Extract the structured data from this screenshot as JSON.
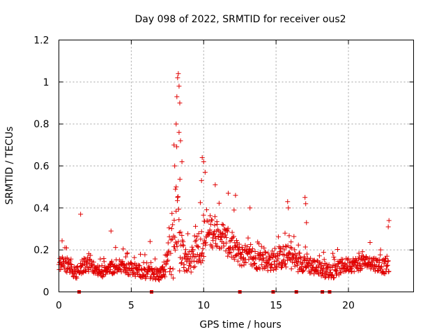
{
  "chart_data": {
    "type": "scatter",
    "title": "Day 098 of 2022, SRMTID for receiver ous2",
    "xlabel": "GPS time / hours",
    "ylabel": "SRMTID / TECUs",
    "xlim": [
      0,
      24.5
    ],
    "ylim": [
      0,
      1.2
    ],
    "xticks": [
      0,
      5,
      10,
      15,
      20
    ],
    "xtick_labels": [
      "0",
      "5",
      "10",
      "15",
      "20"
    ],
    "yticks": [
      0,
      0.2,
      0.4,
      0.6,
      0.8,
      1.0,
      1.2
    ],
    "ytick_labels": [
      "0",
      "0.2",
      "0.4",
      "0.6",
      "0.8",
      "1",
      "1.2"
    ],
    "grid": true,
    "marker": "+",
    "marker_color": "#e00000",
    "series": [
      {
        "name": "SRMTID ous2",
        "envelope": {
          "x": [
            0,
            0.5,
            1,
            1.4,
            1.6,
            2,
            2.5,
            3,
            3.5,
            4,
            4.5,
            5,
            5.5,
            6,
            6.5,
            7,
            7.5,
            7.8,
            8.0,
            8.2,
            8.4,
            8.6,
            9,
            9.5,
            10,
            10.4,
            10.8,
            11.2,
            11.6,
            12,
            12.5,
            13,
            13.5,
            14,
            14.5,
            15,
            15.5,
            16,
            16.5,
            17,
            17.5,
            18,
            18.5,
            19,
            19.5,
            20,
            20.5,
            21,
            21.5,
            22,
            22.5,
            22.8
          ],
          "base": [
            0.13,
            0.12,
            0.09,
            0.08,
            0.12,
            0.12,
            0.1,
            0.09,
            0.1,
            0.11,
            0.11,
            0.1,
            0.09,
            0.08,
            0.08,
            0.07,
            0.12,
            0.18,
            0.22,
            0.2,
            0.18,
            0.15,
            0.12,
            0.16,
            0.22,
            0.26,
            0.27,
            0.25,
            0.22,
            0.19,
            0.16,
            0.15,
            0.14,
            0.14,
            0.13,
            0.14,
            0.15,
            0.15,
            0.13,
            0.13,
            0.11,
            0.1,
            0.09,
            0.09,
            0.11,
            0.12,
            0.12,
            0.13,
            0.13,
            0.12,
            0.11,
            0.12
          ],
          "spread": [
            0.05,
            0.05,
            0.04,
            0.04,
            0.06,
            0.05,
            0.04,
            0.04,
            0.05,
            0.05,
            0.05,
            0.05,
            0.05,
            0.04,
            0.04,
            0.04,
            0.08,
            0.25,
            0.35,
            0.3,
            0.2,
            0.12,
            0.08,
            0.1,
            0.14,
            0.12,
            0.11,
            0.1,
            0.1,
            0.09,
            0.08,
            0.08,
            0.07,
            0.07,
            0.07,
            0.07,
            0.08,
            0.08,
            0.07,
            0.07,
            0.06,
            0.05,
            0.05,
            0.05,
            0.05,
            0.05,
            0.05,
            0.05,
            0.05,
            0.05,
            0.05,
            0.07
          ]
        },
        "peaks": [
          {
            "x": 1.5,
            "y": 0.37
          },
          {
            "x": 3.6,
            "y": 0.29
          },
          {
            "x": 6.3,
            "y": 0.24
          },
          {
            "x": 8.1,
            "y": 0.8
          },
          {
            "x": 8.15,
            "y": 0.93
          },
          {
            "x": 8.2,
            "y": 1.02
          },
          {
            "x": 8.25,
            "y": 1.04
          },
          {
            "x": 8.3,
            "y": 0.98
          },
          {
            "x": 8.35,
            "y": 0.9
          },
          {
            "x": 8.4,
            "y": 0.72
          },
          {
            "x": 8.5,
            "y": 0.62
          },
          {
            "x": 8.3,
            "y": 0.76
          },
          {
            "x": 7.95,
            "y": 0.7
          },
          {
            "x": 8.0,
            "y": 0.6
          },
          {
            "x": 8.1,
            "y": 0.5
          },
          {
            "x": 9.85,
            "y": 0.53
          },
          {
            "x": 9.9,
            "y": 0.64
          },
          {
            "x": 10.0,
            "y": 0.62
          },
          {
            "x": 10.1,
            "y": 0.57
          },
          {
            "x": 10.8,
            "y": 0.51
          },
          {
            "x": 11.7,
            "y": 0.47
          },
          {
            "x": 12.2,
            "y": 0.46
          },
          {
            "x": 13.2,
            "y": 0.4
          },
          {
            "x": 15.8,
            "y": 0.43
          },
          {
            "x": 15.85,
            "y": 0.4
          },
          {
            "x": 17.0,
            "y": 0.45
          },
          {
            "x": 17.05,
            "y": 0.42
          },
          {
            "x": 17.1,
            "y": 0.33
          },
          {
            "x": 22.8,
            "y": 0.34
          },
          {
            "x": 22.75,
            "y": 0.31
          }
        ],
        "zero_points": [
          1.4,
          6.4,
          12.5,
          14.8,
          16.4,
          18.2,
          18.7
        ]
      }
    ]
  }
}
